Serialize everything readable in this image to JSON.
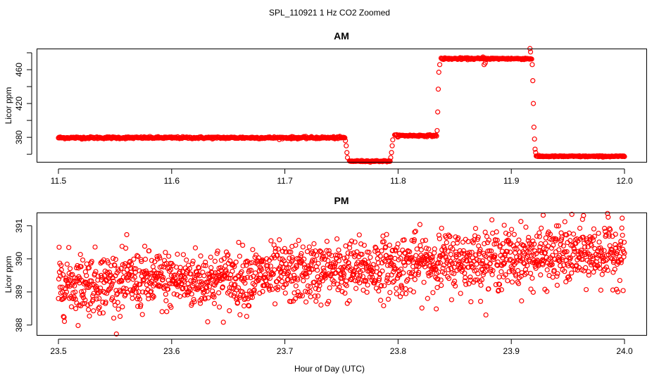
{
  "figure_title": "SPL_110921  1 Hz CO2 Zoomed",
  "xlabel": "Hour of Day (UTC)",
  "chart_data": [
    {
      "type": "scatter",
      "id": "am",
      "title": "AM",
      "xlabel": "",
      "ylabel": "Licor ppm",
      "xlim": [
        11.5,
        12.0
      ],
      "ylim": [
        351,
        485
      ],
      "xticks": [
        11.5,
        11.6,
        11.7,
        11.8,
        11.9,
        12.0
      ],
      "xtick_labels": [
        "11.5",
        "11.6",
        "11.7",
        "11.8",
        "11.9",
        "12.0"
      ],
      "yticks": [
        360,
        380,
        400,
        420,
        440,
        460,
        480
      ],
      "ytick_labels": [
        "",
        "380",
        "",
        "420",
        "",
        "460",
        ""
      ],
      "marker_color": "#ff0000",
      "segments": [
        {
          "x_start": 11.5,
          "x_end": 11.753,
          "level": 379.5,
          "noise": 1.2
        },
        {
          "x_start": 11.757,
          "x_end": 11.793,
          "level": 351.8,
          "noise": 0.8
        },
        {
          "x_start": 11.797,
          "x_end": 11.834,
          "level": 382.0,
          "noise": 1.0
        },
        {
          "x_start": 11.838,
          "x_end": 11.918,
          "level": 473.0,
          "noise": 1.0
        },
        {
          "x_start": 11.922,
          "x_end": 12.0,
          "level": 357.5,
          "noise": 0.7
        }
      ],
      "transitions": [
        {
          "x": 11.7535,
          "y": 376
        },
        {
          "x": 11.7542,
          "y": 370
        },
        {
          "x": 11.7548,
          "y": 362
        },
        {
          "x": 11.7553,
          "y": 356
        },
        {
          "x": 11.7935,
          "y": 356
        },
        {
          "x": 11.7942,
          "y": 362
        },
        {
          "x": 11.7948,
          "y": 370
        },
        {
          "x": 11.7953,
          "y": 377
        },
        {
          "x": 11.8345,
          "y": 388
        },
        {
          "x": 11.835,
          "y": 410
        },
        {
          "x": 11.8355,
          "y": 437
        },
        {
          "x": 11.836,
          "y": 457
        },
        {
          "x": 11.8368,
          "y": 466
        },
        {
          "x": 11.9185,
          "y": 466
        },
        {
          "x": 11.919,
          "y": 447
        },
        {
          "x": 11.9195,
          "y": 420
        },
        {
          "x": 11.92,
          "y": 392
        },
        {
          "x": 11.9205,
          "y": 378
        },
        {
          "x": 11.921,
          "y": 366
        },
        {
          "x": 11.9215,
          "y": 362
        },
        {
          "x": 11.9165,
          "y": 485
        },
        {
          "x": 11.917,
          "y": 481
        },
        {
          "x": 11.875,
          "y": 475
        },
        {
          "x": 11.876,
          "y": 466
        },
        {
          "x": 11.877,
          "y": 468
        }
      ]
    },
    {
      "type": "scatter",
      "id": "pm",
      "title": "PM",
      "xlabel": "Hour of Day (UTC)",
      "ylabel": "Licor ppm",
      "xlim": [
        23.5,
        24.0
      ],
      "ylim": [
        387.7,
        391.4
      ],
      "xticks": [
        23.5,
        23.6,
        23.7,
        23.8,
        23.9,
        24.0
      ],
      "xtick_labels": [
        "23.5",
        "23.6",
        "23.7",
        "23.8",
        "23.9",
        "24.0"
      ],
      "yticks": [
        388,
        389,
        390,
        391
      ],
      "ytick_labels": [
        "388",
        "389",
        "390",
        "391"
      ],
      "marker_color": "#ff0000",
      "trend": [
        {
          "x": 23.5,
          "y": 389.25
        },
        {
          "x": 23.65,
          "y": 389.4
        },
        {
          "x": 23.75,
          "y": 389.65
        },
        {
          "x": 23.85,
          "y": 389.95
        },
        {
          "x": 24.0,
          "y": 390.2
        }
      ],
      "noise_sd": 0.45,
      "n_points": 1700
    }
  ]
}
